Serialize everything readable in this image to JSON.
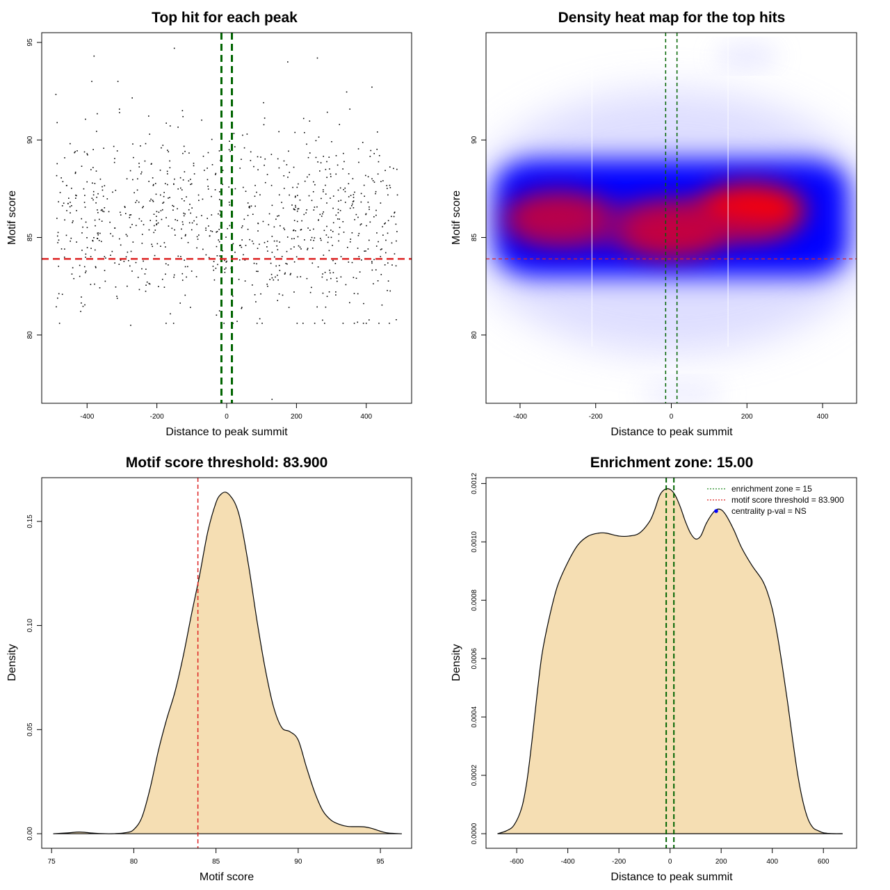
{
  "chart_data": [
    {
      "id": "scatter",
      "type": "scatter",
      "title": "Top hit for each peak",
      "xlabel": "Distance to peak summit",
      "ylabel": "Motif score",
      "xlim": [
        -530,
        530
      ],
      "ylim": [
        76.5,
        95.5
      ],
      "xticks": [
        -400,
        -200,
        0,
        200,
        400
      ],
      "yticks": [
        80,
        85,
        90,
        95
      ],
      "xtick_labels": [
        "-400",
        "-200",
        "0",
        "200",
        "400"
      ],
      "ytick_labels": [
        "80",
        "85",
        "90",
        "95"
      ],
      "vlines": [
        -15,
        15
      ],
      "hline": 83.9,
      "n_points": 900,
      "x_range": [
        -490,
        490
      ],
      "y_center": 85.8,
      "y_spread": 2.4,
      "outliers": [
        {
          "x": -380,
          "y": 94.3
        },
        {
          "x": -150,
          "y": 94.7
        },
        {
          "x": 175,
          "y": 94.0
        },
        {
          "x": 260,
          "y": 94.2
        },
        {
          "x": 130,
          "y": 76.7
        },
        {
          "x": 30,
          "y": 80.7
        },
        {
          "x": 400,
          "y": 80.6
        },
        {
          "x": -275,
          "y": 80.5
        }
      ],
      "colors": {
        "points": "#000000",
        "vlines": "#006400",
        "hline": "#dd2222"
      }
    },
    {
      "id": "heatmap",
      "type": "heatmap",
      "title": "Density heat map for the top hits",
      "xlabel": "Distance to peak summit",
      "ylabel": "Motif score",
      "xlim": [
        -490,
        490
      ],
      "ylim": [
        76.5,
        95.5
      ],
      "xticks": [
        -400,
        -200,
        0,
        200,
        400
      ],
      "yticks": [
        80,
        85,
        90
      ],
      "xtick_labels": [
        "-400",
        "-200",
        "0",
        "200",
        "400"
      ],
      "ytick_labels": [
        "80",
        "85",
        "90"
      ],
      "vlines": [
        -15,
        15
      ],
      "hline": 83.9,
      "hotspots": [
        {
          "x": -300,
          "y": 86.0,
          "intensity": 0.75
        },
        {
          "x": 0,
          "y": 85.4,
          "intensity": 0.85
        },
        {
          "x": 210,
          "y": 86.4,
          "intensity": 1.0
        }
      ],
      "colors": {
        "low": "#ffffff",
        "mid": "#0000ff",
        "high": "#ff0000",
        "vlines": "#006400",
        "hline": "#dd2222"
      }
    },
    {
      "id": "motif-density",
      "type": "area",
      "title": "Motif score threshold: 83.900",
      "xlabel": "Motif score",
      "ylabel": "Density",
      "xlim": [
        74.4,
        96.9
      ],
      "ylim": [
        -0.007,
        0.171
      ],
      "xticks": [
        75,
        80,
        85,
        90,
        95
      ],
      "yticks": [
        0.0,
        0.05,
        0.1,
        0.15
      ],
      "xtick_labels": [
        "75",
        "80",
        "85",
        "90",
        "95"
      ],
      "ytick_labels": [
        "0.00",
        "0.05",
        "0.10",
        "0.15"
      ],
      "x": [
        75.1,
        76.0,
        76.7,
        77.5,
        78.5,
        79.5,
        80.0,
        80.5,
        81.0,
        81.5,
        82.0,
        82.5,
        83.0,
        83.5,
        84.0,
        84.5,
        85.0,
        85.3,
        85.6,
        85.9,
        86.2,
        86.5,
        87.0,
        87.5,
        88.0,
        88.5,
        89.0,
        89.5,
        90.0,
        90.5,
        91.0,
        91.5,
        92.0,
        92.5,
        93.0,
        93.5,
        94.0,
        94.5,
        95.0,
        95.5,
        96.3
      ],
      "y": [
        0.0,
        0.0004,
        0.0008,
        0.0003,
        0.0,
        0.0005,
        0.002,
        0.008,
        0.022,
        0.04,
        0.055,
        0.068,
        0.085,
        0.105,
        0.124,
        0.145,
        0.159,
        0.163,
        0.164,
        0.162,
        0.158,
        0.15,
        0.128,
        0.102,
        0.079,
        0.061,
        0.051,
        0.049,
        0.045,
        0.032,
        0.02,
        0.011,
        0.0065,
        0.0045,
        0.0035,
        0.0034,
        0.0033,
        0.0025,
        0.0012,
        0.0003,
        0.0
      ],
      "vline": 83.9,
      "colors": {
        "fill": "#f5deb3",
        "line": "#000000",
        "vline": "#dd2222"
      }
    },
    {
      "id": "enrichment-density",
      "type": "area",
      "title": "Enrichment zone: 15.00",
      "xlabel": "Distance to peak summit",
      "ylabel": "Density",
      "xlim": [
        -720,
        730
      ],
      "ylim": [
        -5e-05,
        0.00122
      ],
      "xticks": [
        -600,
        -400,
        -200,
        0,
        200,
        400,
        600
      ],
      "yticks": [
        0.0,
        0.0002,
        0.0004,
        0.0006,
        0.0008,
        0.001,
        0.0012
      ],
      "xtick_labels": [
        "-600",
        "-400",
        "-200",
        "0",
        "200",
        "400",
        "600"
      ],
      "ytick_labels": [
        "0.0000",
        "0.0002",
        "0.0004",
        "0.0006",
        "0.0008",
        "0.0010",
        "0.0012"
      ],
      "x": [
        -675,
        -640,
        -610,
        -580,
        -560,
        -540,
        -520,
        -500,
        -470,
        -440,
        -400,
        -360,
        -320,
        -280,
        -250,
        -200,
        -160,
        -120,
        -80,
        -60,
        -40,
        -20,
        0,
        20,
        40,
        60,
        80,
        100,
        120,
        140,
        160,
        180,
        200,
        220,
        250,
        280,
        320,
        360,
        380,
        400,
        420,
        440,
        460,
        480,
        500,
        520,
        540,
        560,
        580,
        600,
        620,
        640,
        675
      ],
      "y": [
        0.0,
        1e-05,
        3e-05,
        9e-05,
        0.00018,
        0.00032,
        0.00048,
        0.00062,
        0.00075,
        0.00085,
        0.00093,
        0.00099,
        0.00102,
        0.00103,
        0.00103,
        0.00102,
        0.00102,
        0.00103,
        0.00107,
        0.00111,
        0.00116,
        0.00118,
        0.00118,
        0.00116,
        0.00112,
        0.00107,
        0.00103,
        0.00101,
        0.00102,
        0.00106,
        0.00109,
        0.00111,
        0.00111,
        0.00109,
        0.00104,
        0.00098,
        0.00092,
        0.00087,
        0.00083,
        0.00077,
        0.00068,
        0.00057,
        0.00045,
        0.00032,
        0.0002,
        0.00011,
        5e-05,
        2e-05,
        1e-05,
        3e-06,
        1e-06,
        0.0,
        0.0
      ],
      "vlines": [
        -15,
        15
      ],
      "legend": [
        {
          "label": "enrichment zone = 15",
          "style": "dotted-line",
          "color": "#228B22"
        },
        {
          "label": "motif score threshold = 83.900",
          "style": "dotted-line",
          "color": "#dd2222"
        },
        {
          "label": "centrality p-val = NS",
          "style": "point",
          "color": "#0000ff"
        }
      ],
      "legend_position": "top-right",
      "colors": {
        "fill": "#f5deb3",
        "line": "#000000",
        "vline": "#006400"
      }
    }
  ]
}
